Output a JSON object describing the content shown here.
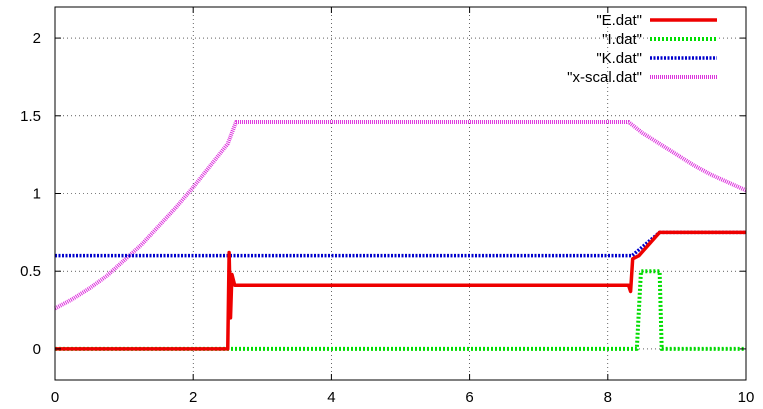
{
  "chart_data": {
    "type": "line",
    "title": "",
    "xlabel": "",
    "ylabel": "",
    "xlim": [
      0,
      10
    ],
    "ylim": [
      -0.2,
      2.2
    ],
    "x_ticks": [
      "0",
      "2",
      "4",
      "6",
      "8",
      "10"
    ],
    "y_ticks": [
      "0",
      "0.5",
      "1",
      "1.5",
      "2"
    ],
    "grid": true,
    "legend_position": "top-right",
    "series": [
      {
        "name": "\"E.dat\"",
        "color": "#ee0000",
        "style": "solid",
        "points": [
          [
            0,
            0
          ],
          [
            2.5,
            0
          ],
          [
            2.52,
            0.62
          ],
          [
            2.54,
            0.2
          ],
          [
            2.56,
            0.48
          ],
          [
            2.6,
            0.41
          ],
          [
            8.3,
            0.41
          ],
          [
            8.33,
            0.37
          ],
          [
            8.36,
            0.58
          ],
          [
            8.45,
            0.6
          ],
          [
            8.75,
            0.75
          ],
          [
            10,
            0.75
          ]
        ]
      },
      {
        "name": "\"I.dat\"",
        "color": "#00dd00",
        "style": "dotted",
        "points": [
          [
            0,
            0
          ],
          [
            8.42,
            0
          ],
          [
            8.48,
            0.5
          ],
          [
            8.75,
            0.5
          ],
          [
            8.78,
            0
          ],
          [
            10,
            0
          ]
        ]
      },
      {
        "name": "\"K.dat\"",
        "color": "#0000cc",
        "style": "dotted",
        "points": [
          [
            0,
            0.6
          ],
          [
            8.35,
            0.6
          ],
          [
            8.75,
            0.75
          ],
          [
            10,
            0.75
          ]
        ]
      },
      {
        "name": "\"x-scal.dat\"",
        "color": "#dd33dd",
        "style": "dotted",
        "points": [
          [
            0,
            0.26
          ],
          [
            0.25,
            0.32
          ],
          [
            0.5,
            0.39
          ],
          [
            0.75,
            0.47
          ],
          [
            1.0,
            0.57
          ],
          [
            1.25,
            0.67
          ],
          [
            1.5,
            0.79
          ],
          [
            1.75,
            0.91
          ],
          [
            2.0,
            1.04
          ],
          [
            2.25,
            1.18
          ],
          [
            2.5,
            1.32
          ],
          [
            2.62,
            1.46
          ],
          [
            8.3,
            1.46
          ],
          [
            8.5,
            1.39
          ],
          [
            8.75,
            1.32
          ],
          [
            9.0,
            1.25
          ],
          [
            9.25,
            1.18
          ],
          [
            9.5,
            1.12
          ],
          [
            9.75,
            1.07
          ],
          [
            10,
            1.02
          ]
        ]
      }
    ]
  }
}
